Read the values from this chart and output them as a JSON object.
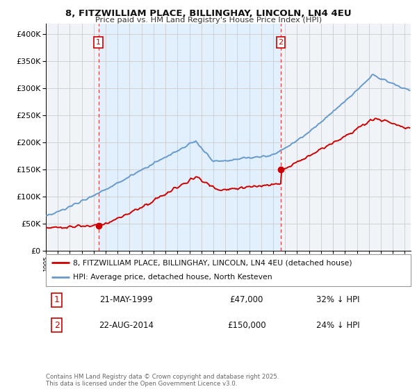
{
  "title_line1": "8, FITZWILLIAM PLACE, BILLINGHAY, LINCOLN, LN4 4EU",
  "title_line2": "Price paid vs. HM Land Registry's House Price Index (HPI)",
  "ylabel_ticks": [
    "£0",
    "£50K",
    "£100K",
    "£150K",
    "£200K",
    "£250K",
    "£300K",
    "£350K",
    "£400K"
  ],
  "ytick_values": [
    0,
    50000,
    100000,
    150000,
    200000,
    250000,
    300000,
    350000,
    400000
  ],
  "ylim": [
    0,
    420000
  ],
  "xlim_start": 1995.0,
  "xlim_end": 2025.5,
  "purchase1_x": 1999.39,
  "purchase1_y": 47000,
  "purchase2_x": 2014.64,
  "purchase2_y": 150000,
  "vline1_x": 1999.39,
  "vline2_x": 2014.64,
  "legend_label1": "8, FITZWILLIAM PLACE, BILLINGHAY, LINCOLN, LN4 4EU (detached house)",
  "legend_label2": "HPI: Average price, detached house, North Kesteven",
  "table_row1_num": "1",
  "table_row1_date": "21-MAY-1999",
  "table_row1_price": "£47,000",
  "table_row1_hpi": "32% ↓ HPI",
  "table_row2_num": "2",
  "table_row2_date": "22-AUG-2014",
  "table_row2_price": "£150,000",
  "table_row2_hpi": "24% ↓ HPI",
  "footer": "Contains HM Land Registry data © Crown copyright and database right 2025.\nThis data is licensed under the Open Government Licence v3.0.",
  "red_color": "#cc0000",
  "blue_color": "#6699cc",
  "shade_color": "#ddeeff",
  "bg_color": "#f0f4f8",
  "grid_color": "#cccccc",
  "vline_color": "#dd4444"
}
